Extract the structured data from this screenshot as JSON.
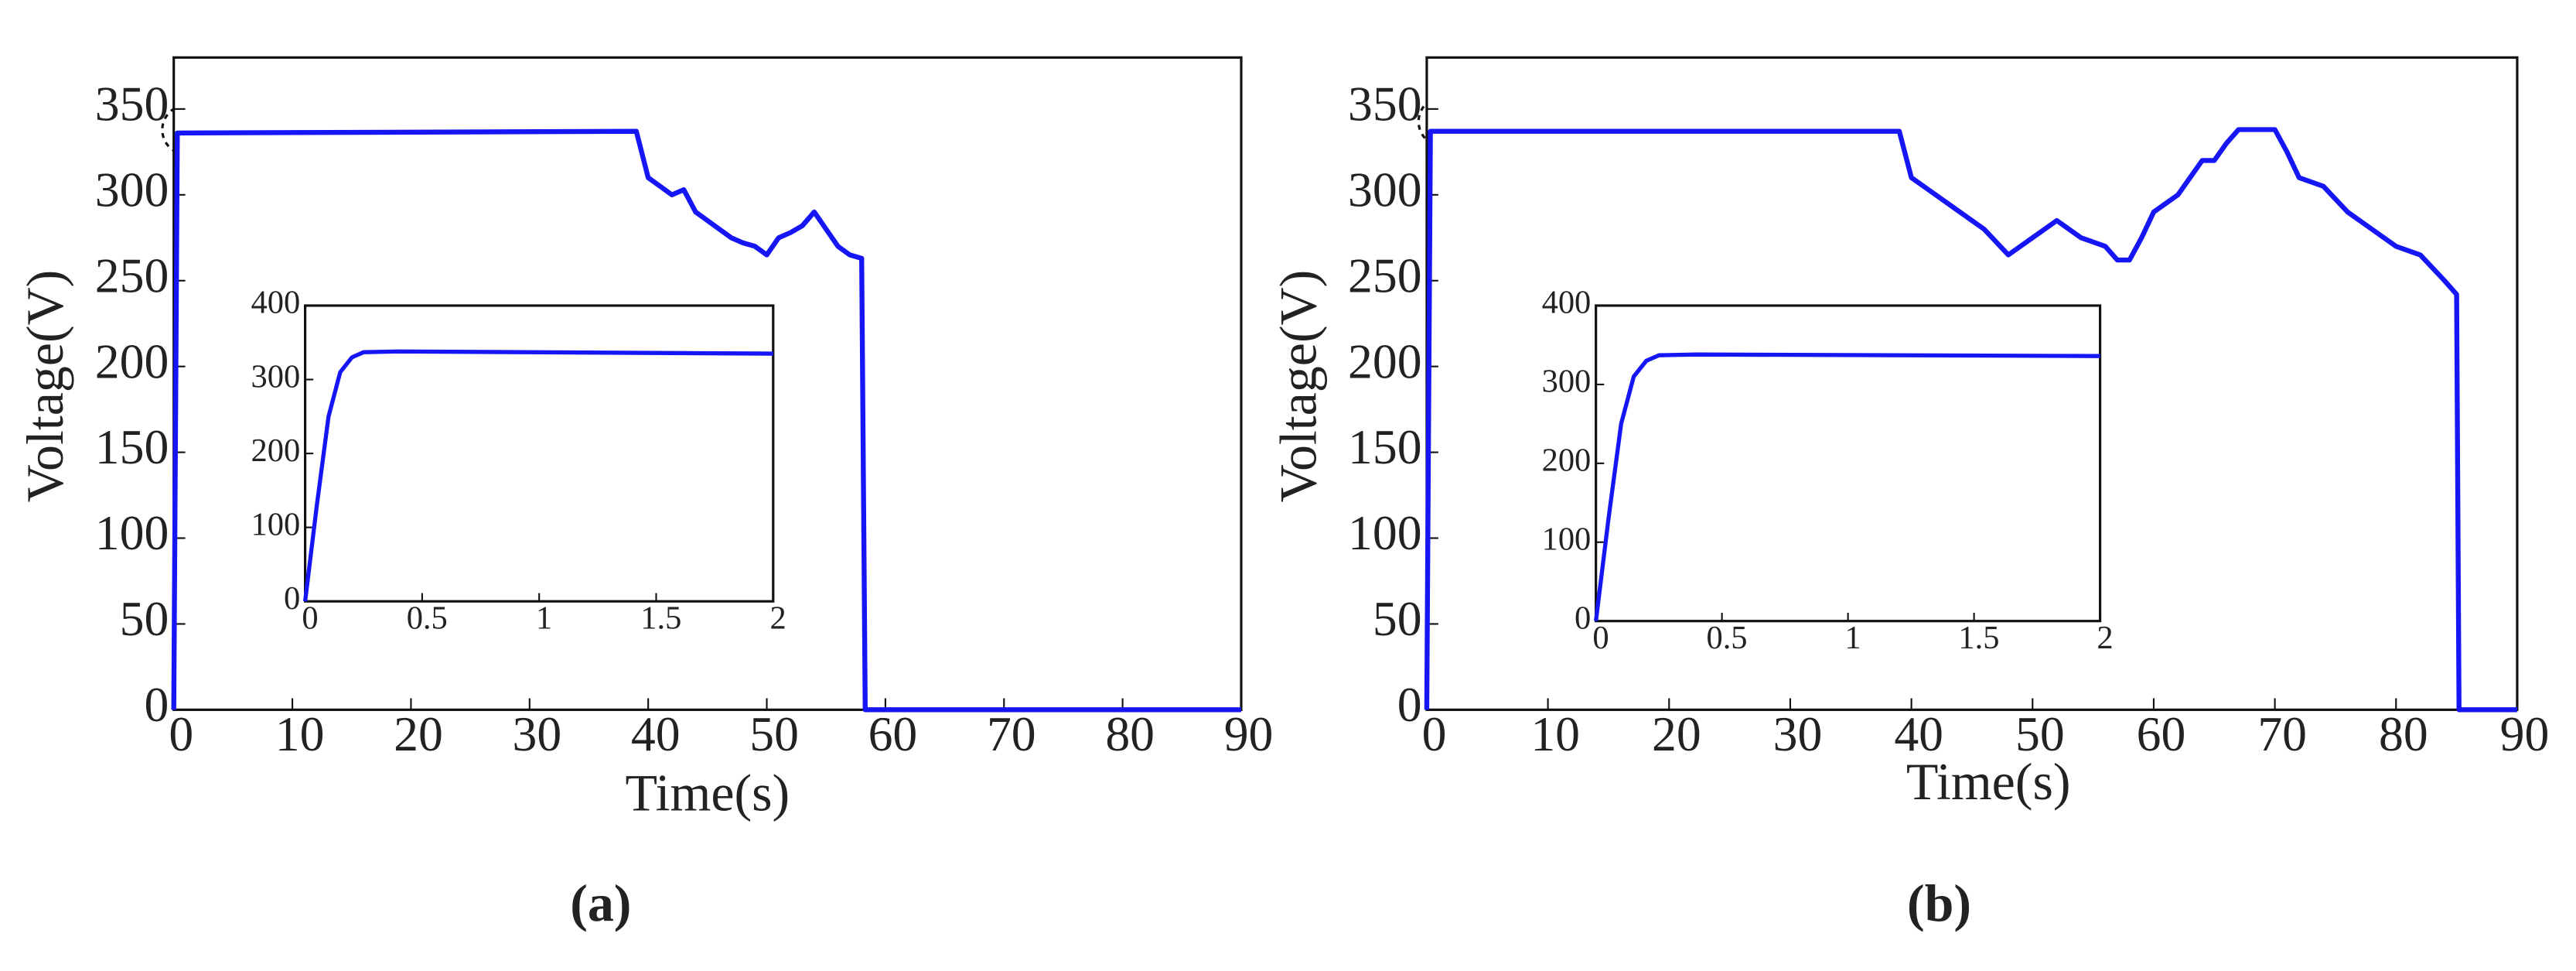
{
  "chart_data": [
    {
      "type": "line",
      "caption": "(a)",
      "xlabel": "Time(s)",
      "ylabel": "Voltage(V)",
      "xlim": [
        0,
        90
      ],
      "ylim": [
        0,
        380
      ],
      "xticks": [
        0,
        10,
        20,
        30,
        40,
        50,
        60,
        70,
        80,
        90
      ],
      "yticks": [
        0,
        50,
        100,
        150,
        200,
        250,
        300,
        350
      ],
      "series": [
        {
          "color": "#1515f5",
          "x": [
            0,
            0.3,
            39,
            40,
            41,
            42,
            43,
            44,
            45,
            46,
            47,
            48,
            49,
            50,
            51,
            52,
            53,
            54,
            55,
            56,
            57,
            58,
            58.3,
            90
          ],
          "values": [
            0,
            336,
            337,
            310,
            305,
            300,
            303,
            290,
            285,
            280,
            275,
            272,
            270,
            265,
            275,
            278,
            282,
            290,
            280,
            270,
            265,
            263,
            0,
            0
          ]
        }
      ],
      "inset": {
        "type": "line",
        "xlim": [
          0,
          2
        ],
        "ylim": [
          0,
          400
        ],
        "xticks": [
          0,
          0.5,
          1,
          1.5,
          2
        ],
        "yticks": [
          0,
          100,
          200,
          300,
          400
        ],
        "series": [
          {
            "color": "#1515f5",
            "x": [
              0,
              0.05,
              0.1,
              0.15,
              0.2,
              0.25,
              0.4,
              2
            ],
            "values": [
              0,
              130,
              250,
              310,
              330,
              337,
              338,
              335
            ]
          }
        ]
      }
    },
    {
      "type": "line",
      "caption": "(b)",
      "xlabel": "Time(s)",
      "ylabel": "Voltage(V)",
      "xlim": [
        0,
        90
      ],
      "ylim": [
        0,
        380
      ],
      "xticks": [
        0,
        10,
        20,
        30,
        40,
        50,
        60,
        70,
        80,
        90
      ],
      "yticks": [
        0,
        50,
        100,
        150,
        200,
        250,
        300,
        350
      ],
      "series": [
        {
          "color": "#1515f5",
          "x": [
            0,
            0.3,
            39,
            40,
            41,
            42,
            44,
            46,
            48,
            50,
            52,
            54,
            56,
            57,
            58,
            59,
            60,
            61,
            62,
            63,
            64,
            65,
            66,
            67,
            70,
            71,
            72,
            74,
            76,
            78,
            80,
            82,
            84,
            85,
            85.2,
            90
          ],
          "values": [
            0,
            337,
            337,
            310,
            305,
            300,
            290,
            280,
            265,
            275,
            285,
            275,
            270,
            262,
            262,
            275,
            290,
            295,
            300,
            310,
            320,
            320,
            330,
            338,
            338,
            325,
            310,
            305,
            290,
            280,
            270,
            265,
            250,
            242,
            0,
            0
          ]
        }
      ],
      "inset": {
        "type": "line",
        "xlim": [
          0,
          2
        ],
        "ylim": [
          0,
          400
        ],
        "xticks": [
          0,
          0.5,
          1,
          1.5,
          2
        ],
        "yticks": [
          0,
          100,
          200,
          300,
          400
        ],
        "series": [
          {
            "color": "#1515f5",
            "x": [
              0,
              0.05,
              0.1,
              0.15,
              0.2,
              0.25,
              0.4,
              2
            ],
            "values": [
              0,
              130,
              250,
              310,
              330,
              337,
              338,
              336
            ]
          }
        ]
      }
    }
  ]
}
